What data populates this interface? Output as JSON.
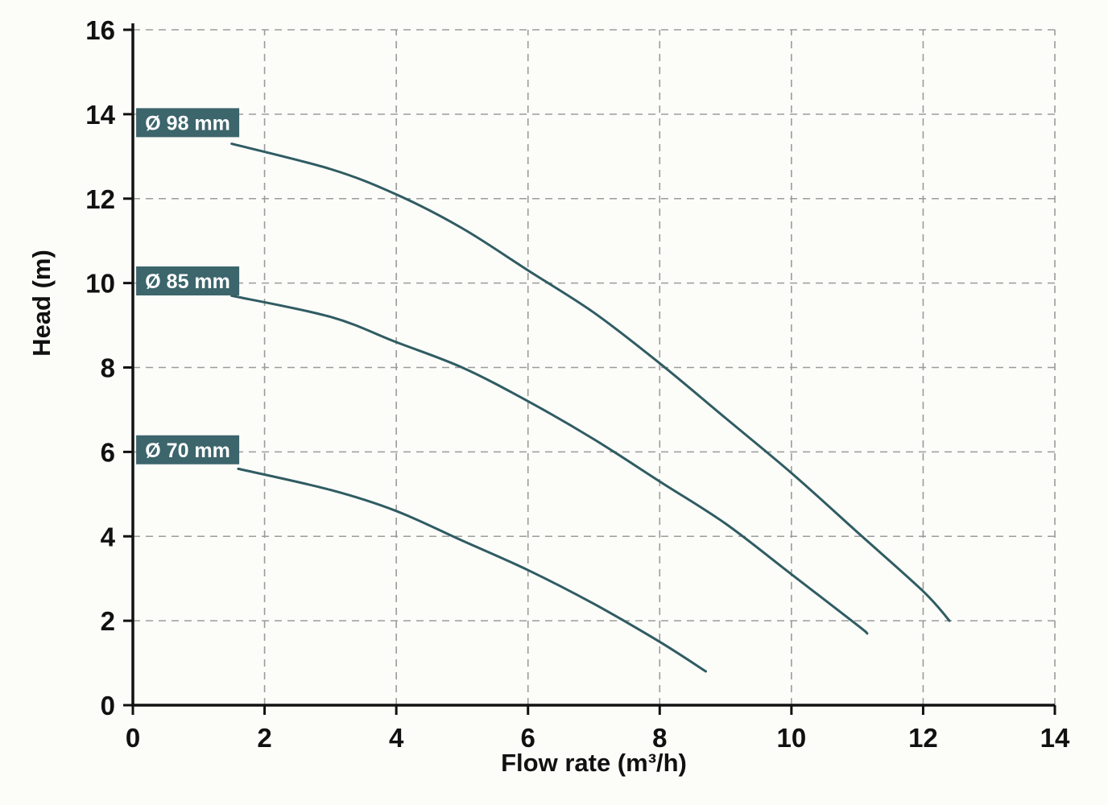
{
  "chart_data": {
    "type": "line",
    "title": "",
    "xlabel": "Flow rate (m³/h)",
    "ylabel": "Head (m)",
    "xlim": [
      0,
      14
    ],
    "ylim": [
      0,
      16
    ],
    "x_ticks": [
      0,
      2,
      4,
      6,
      8,
      10,
      12,
      14
    ],
    "y_ticks": [
      0,
      2,
      4,
      6,
      8,
      10,
      12,
      14,
      16
    ],
    "grid": "dashed",
    "legend_position": "inline-labels",
    "series": [
      {
        "name": "Ø 98 mm",
        "points": [
          [
            1.5,
            13.3
          ],
          [
            3,
            12.7
          ],
          [
            4,
            12.1
          ],
          [
            5,
            11.3
          ],
          [
            6,
            10.3
          ],
          [
            7,
            9.3
          ],
          [
            8,
            8.1
          ],
          [
            9,
            6.8
          ],
          [
            10,
            5.5
          ],
          [
            11,
            4.1
          ],
          [
            12,
            2.7
          ],
          [
            12.4,
            2.0
          ]
        ],
        "label": {
          "text": "Ø 98 mm",
          "x": 0.05,
          "y": 13.8
        }
      },
      {
        "name": "Ø 85 mm",
        "points": [
          [
            1.5,
            9.7
          ],
          [
            3,
            9.2
          ],
          [
            4,
            8.6
          ],
          [
            5,
            8.0
          ],
          [
            6,
            7.2
          ],
          [
            7,
            6.3
          ],
          [
            8,
            5.3
          ],
          [
            9,
            4.3
          ],
          [
            10,
            3.1
          ],
          [
            11,
            1.9
          ],
          [
            11.15,
            1.7
          ]
        ],
        "label": {
          "text": "Ø 85 mm",
          "x": 0.05,
          "y": 10.05
        }
      },
      {
        "name": "Ø 70 mm",
        "points": [
          [
            1.6,
            5.6
          ],
          [
            3,
            5.1
          ],
          [
            4,
            4.6
          ],
          [
            5,
            3.9
          ],
          [
            6,
            3.2
          ],
          [
            7,
            2.4
          ],
          [
            8,
            1.5
          ],
          [
            8.7,
            0.8
          ]
        ],
        "label": {
          "text": "Ø 70 mm",
          "x": 0.05,
          "y": 6.05
        }
      }
    ],
    "colors": {
      "curve": "#2f5c62",
      "label_box": "#3c656c",
      "label_text": "#ffffff",
      "grid": "#9b9b9b",
      "axis": "#111111",
      "tick_text": "#111111",
      "background": "#fcfcf9"
    }
  }
}
